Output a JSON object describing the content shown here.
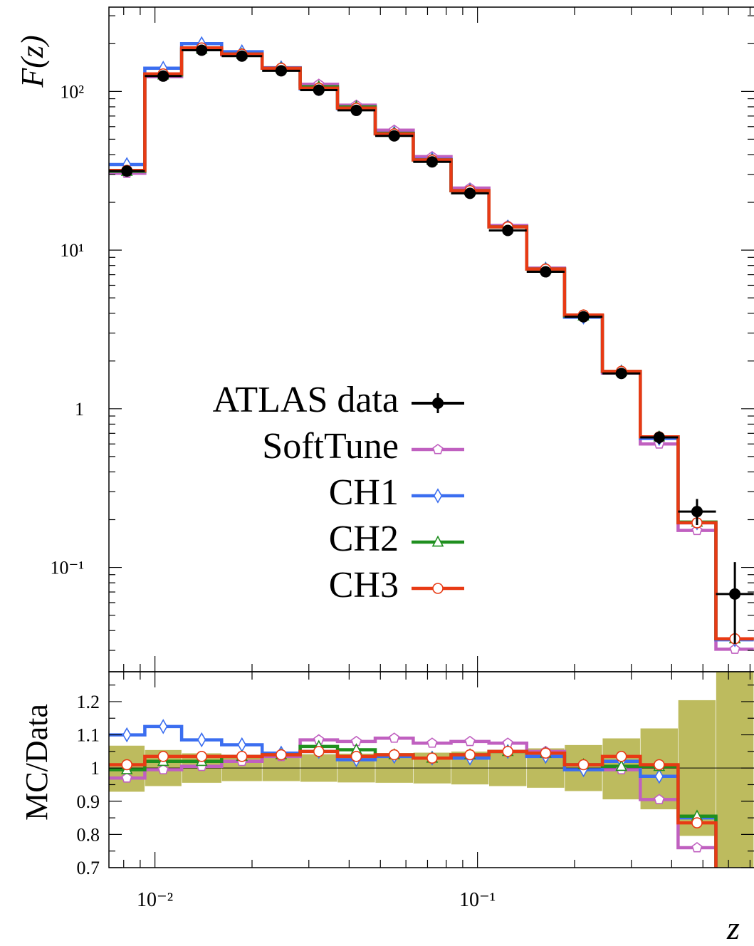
{
  "chart_data": [
    {
      "type": "line",
      "name": "main",
      "xlabel": "z",
      "ylabel": "F(z)",
      "xscale": "log",
      "yscale": "log",
      "xlim": [
        0.0072,
        0.72
      ],
      "ylim": [
        0.022,
        340
      ],
      "y_ticks": [
        {
          "value": 0.1,
          "label": "10⁻¹"
        },
        {
          "value": 1,
          "label": "1"
        },
        {
          "value": 10,
          "label": "10¹"
        },
        {
          "value": 100,
          "label": "10²"
        }
      ],
      "x_ticks": [
        {
          "value": 0.01,
          "label": "10⁻²"
        },
        {
          "value": 0.1,
          "label": "10⁻¹"
        }
      ],
      "bin_edges": [
        0.0072,
        0.0093,
        0.0121,
        0.0161,
        0.0215,
        0.0282,
        0.0368,
        0.0482,
        0.0632,
        0.0828,
        0.1085,
        0.1421,
        0.1862,
        0.244,
        0.3197,
        0.4188,
        0.5487,
        0.7189
      ],
      "data": {
        "name": "ATLAS data",
        "color": "#000000",
        "values": [
          31.5,
          125,
          182,
          167,
          135,
          102,
          76,
          52.5,
          36,
          22.8,
          13.3,
          7.3,
          3.8,
          1.67,
          0.66,
          0.225,
          0.068
        ],
        "err_low": [
          1.2,
          4,
          5,
          4,
          3,
          2.5,
          2,
          1.5,
          1.0,
          0.6,
          0.4,
          0.25,
          0.15,
          0.08,
          0.06,
          0.04,
          0.035
        ],
        "err_high": [
          1.2,
          4,
          5,
          4,
          3,
          2.5,
          2,
          1.5,
          1.0,
          0.6,
          0.4,
          0.25,
          0.15,
          0.08,
          0.06,
          0.045,
          0.04
        ]
      },
      "series": [
        {
          "name": "SoftTune",
          "color": "#c060c0",
          "marker": "pentagon",
          "values": [
            30.5,
            124,
            184,
            170,
            140,
            111,
            82,
            57,
            38.8,
            24.6,
            14.3,
            7.7,
            3.85,
            1.68,
            0.6,
            0.171,
            0.0305
          ]
        },
        {
          "name": "CH1",
          "color": "#3b6ef0",
          "marker": "diamond",
          "values": [
            34.6,
            140,
            200,
            178,
            141,
            104,
            78,
            54.5,
            37.3,
            23.7,
            14,
            7.6,
            3.78,
            1.71,
            0.65,
            0.191,
            0.035
          ]
        },
        {
          "name": "CH2",
          "color": "#1f8f1f",
          "marker": "triangle",
          "values": [
            31.4,
            127,
            185,
            172,
            140,
            107,
            80,
            54.5,
            37,
            23.7,
            14,
            7.6,
            3.85,
            1.72,
            0.665,
            0.193,
            0.0355
          ]
        },
        {
          "name": "CH3",
          "color": "#e83a14",
          "marker": "circle",
          "values": [
            31.8,
            129,
            188,
            172,
            140,
            105,
            78.5,
            54,
            37,
            23.7,
            14,
            7.6,
            3.9,
            1.72,
            0.665,
            0.191,
            0.0355
          ]
        }
      ],
      "legend": {
        "position": "center-left"
      }
    },
    {
      "type": "line",
      "name": "ratio",
      "xlabel": "z",
      "ylabel": "MC/Data",
      "xscale": "log",
      "xlim": [
        0.0072,
        0.72
      ],
      "ylim": [
        0.7,
        1.29
      ],
      "y_ticks": [
        {
          "value": 0.7,
          "label": "0.7"
        },
        {
          "value": 0.8,
          "label": "0.8"
        },
        {
          "value": 0.9,
          "label": "0.9"
        },
        {
          "value": 1.0,
          "label": "1"
        },
        {
          "value": 1.1,
          "label": "1.1"
        },
        {
          "value": 1.2,
          "label": "1.2"
        }
      ],
      "reference_line": 1.0,
      "band": {
        "color": "#bdbb5e",
        "low": [
          0.928,
          0.945,
          0.955,
          0.96,
          0.96,
          0.958,
          0.956,
          0.955,
          0.953,
          0.95,
          0.945,
          0.94,
          0.93,
          0.905,
          0.875,
          0.795,
          0.6
        ],
        "high": [
          1.068,
          1.055,
          1.045,
          1.04,
          1.04,
          1.042,
          1.044,
          1.045,
          1.047,
          1.05,
          1.055,
          1.06,
          1.07,
          1.09,
          1.12,
          1.205,
          1.4
        ]
      },
      "series": [
        {
          "name": "SoftTune",
          "color": "#c060c0",
          "marker": "pentagon",
          "values": [
            0.97,
            0.995,
            1.005,
            1.02,
            1.035,
            1.085,
            1.08,
            1.09,
            1.075,
            1.08,
            1.075,
            1.05,
            1.01,
            0.995,
            0.905,
            0.76,
            0.45
          ]
        },
        {
          "name": "CH1",
          "color": "#3b6ef0",
          "marker": "diamond",
          "values": [
            1.1,
            1.125,
            1.085,
            1.07,
            1.045,
            1.05,
            1.025,
            1.035,
            1.03,
            1.03,
            1.05,
            1.035,
            0.995,
            1.02,
            0.975,
            0.85,
            0.52
          ]
        },
        {
          "name": "CH2",
          "color": "#1f8f1f",
          "marker": "triangle",
          "values": [
            0.995,
            1.02,
            1.02,
            1.035,
            1.04,
            1.065,
            1.055,
            1.04,
            1.03,
            1.04,
            1.05,
            1.045,
            1.01,
            1.005,
            1.005,
            0.855,
            0.53
          ]
        },
        {
          "name": "CH3",
          "color": "#e83a14",
          "marker": "circle",
          "values": [
            1.01,
            1.035,
            1.035,
            1.035,
            1.04,
            1.05,
            1.035,
            1.04,
            1.03,
            1.04,
            1.05,
            1.045,
            1.01,
            1.035,
            1.01,
            0.835,
            0.52
          ]
        }
      ]
    }
  ],
  "legend_entries": [
    "ATLAS data",
    "SoftTune",
    "CH1",
    "CH2",
    "CH3"
  ]
}
